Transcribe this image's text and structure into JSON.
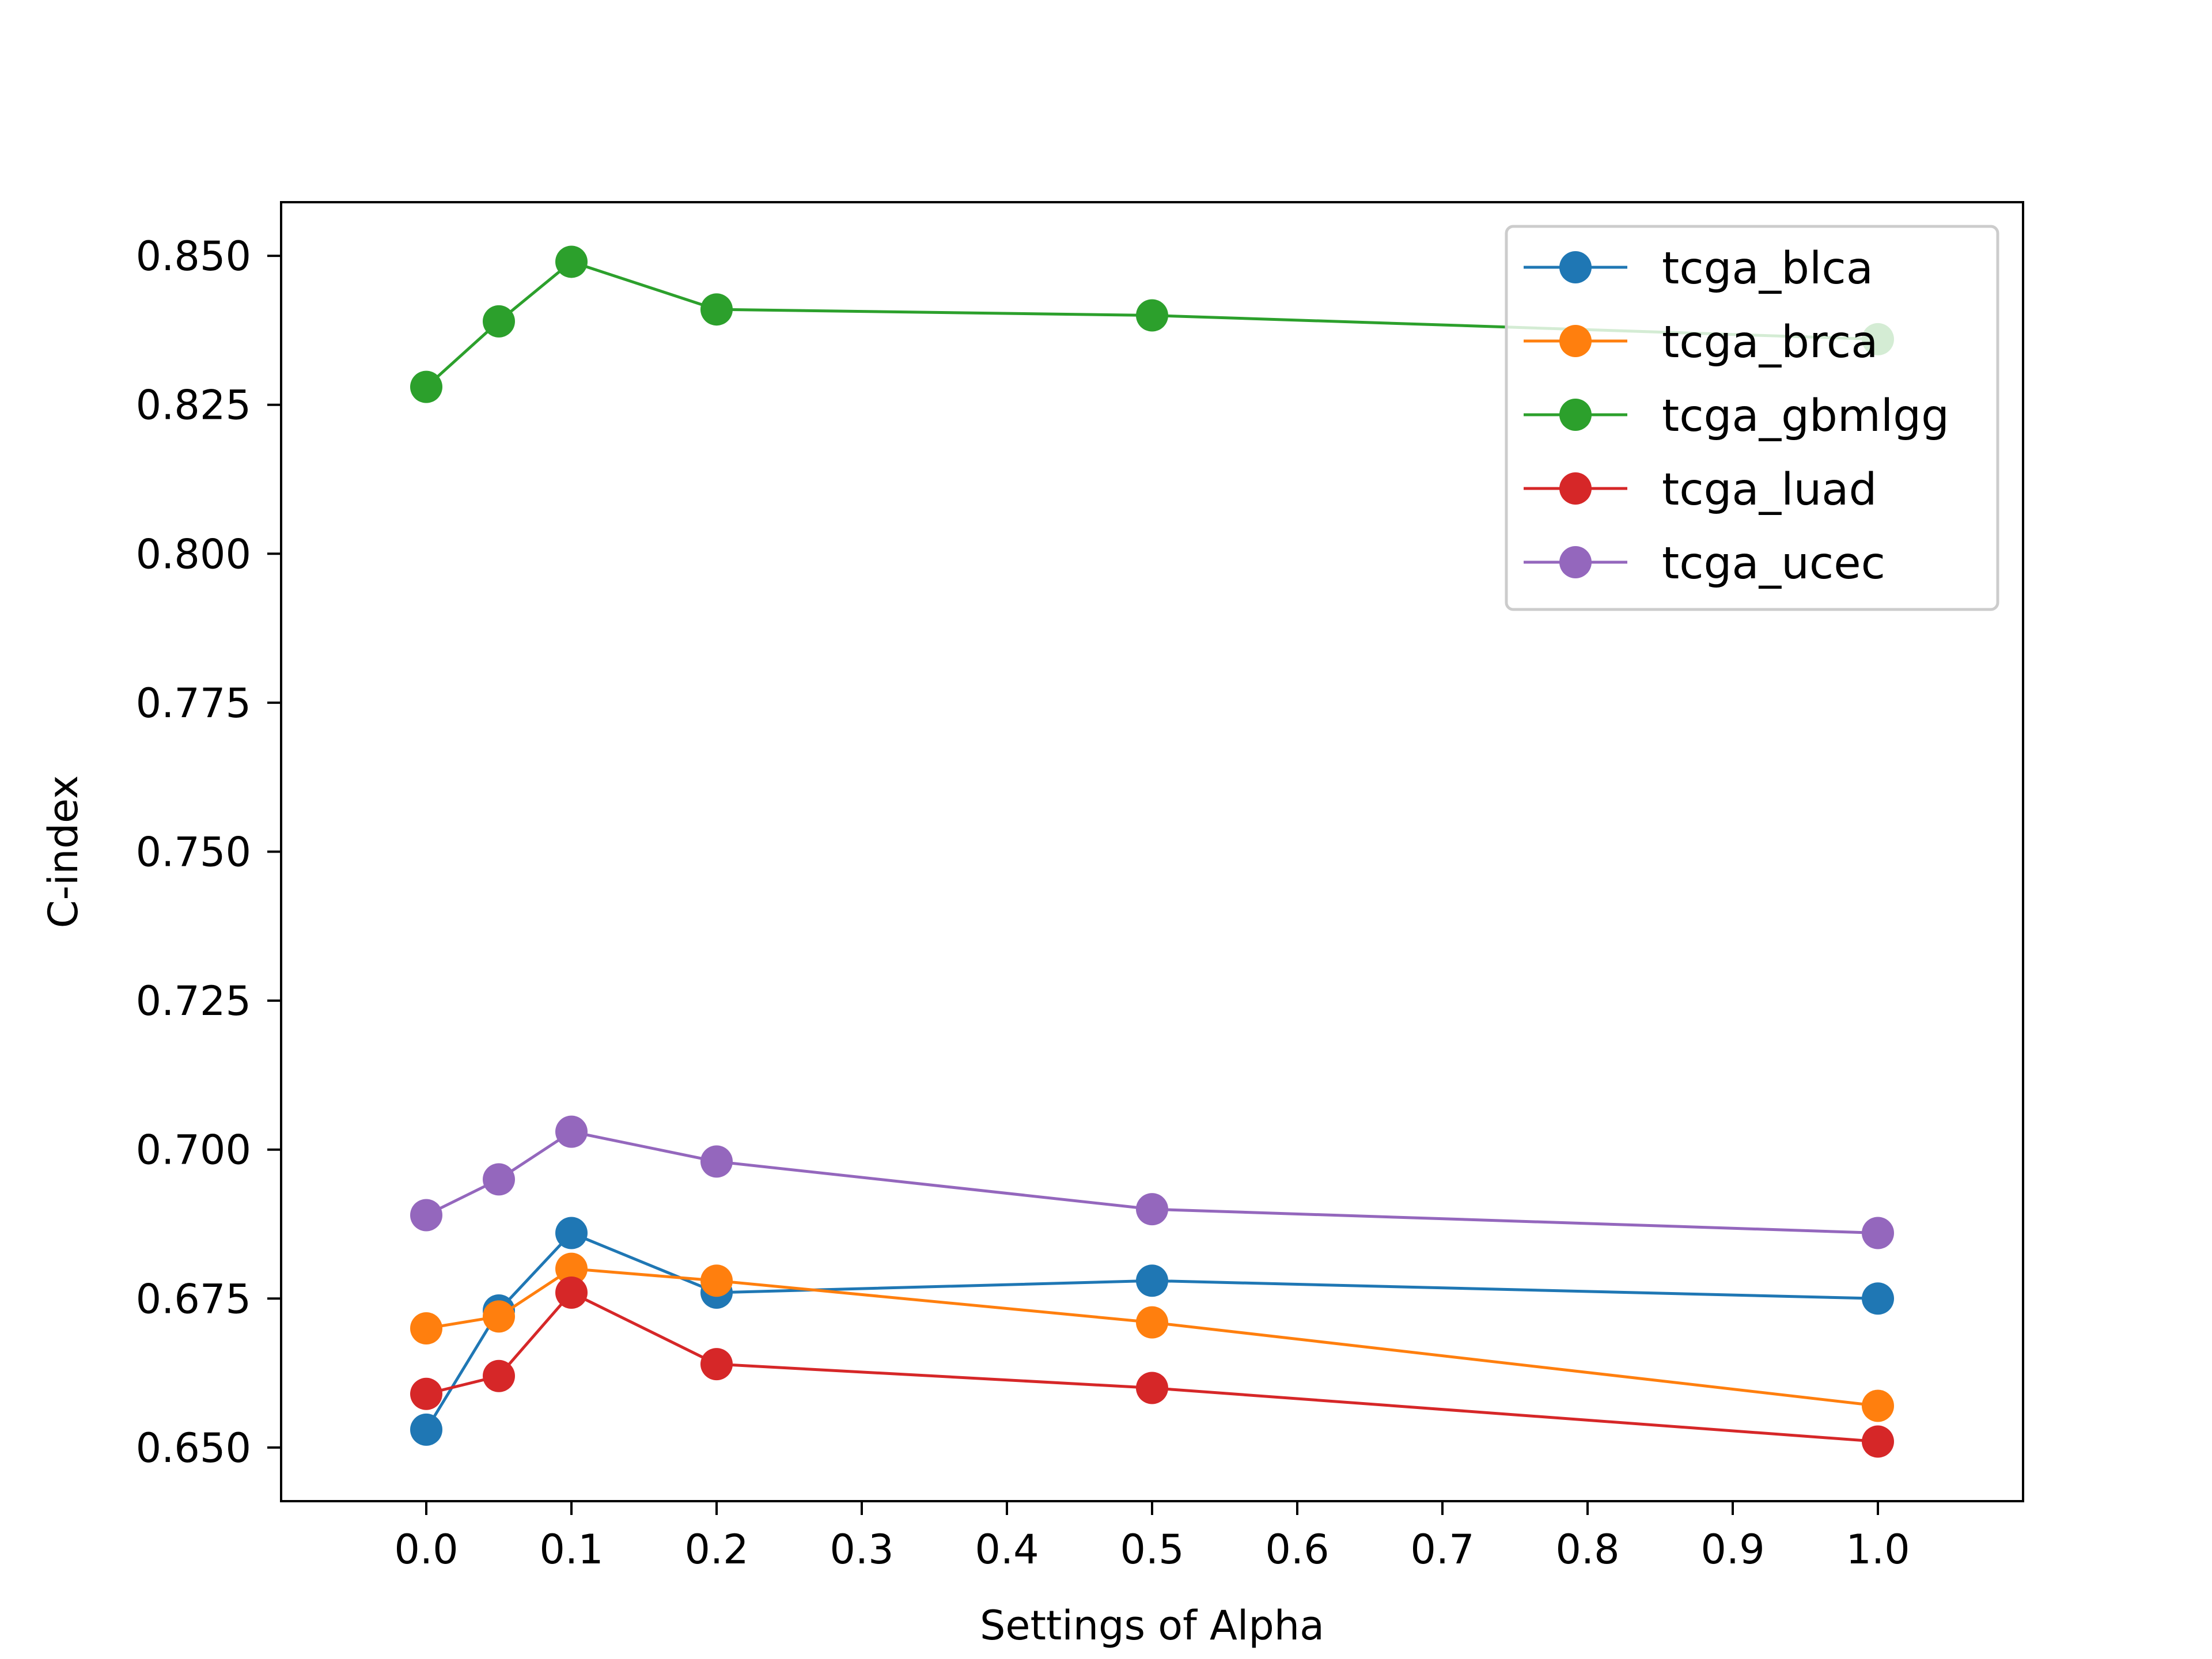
{
  "chart_data": {
    "type": "line",
    "title": "",
    "xlabel": "Settings of Alpha",
    "ylabel": "C-index",
    "xlim": [
      -0.1,
      1.1
    ],
    "ylim": [
      0.641,
      0.859
    ],
    "x_ticks": [
      "0.0",
      "0.1",
      "0.2",
      "0.3",
      "0.4",
      "0.5",
      "0.6",
      "0.7",
      "0.8",
      "0.9",
      "1.0"
    ],
    "y_ticks": [
      "0.650",
      "0.675",
      "0.700",
      "0.725",
      "0.750",
      "0.775",
      "0.800",
      "0.825",
      "0.850"
    ],
    "x": [
      0.0,
      0.05,
      0.1,
      0.2,
      0.5,
      1.0
    ],
    "legend_position": "top-right",
    "grid": false,
    "series": [
      {
        "name": "tcga_blca",
        "color": "#1f77b4",
        "values": [
          0.653,
          0.673,
          0.686,
          0.676,
          0.678,
          0.675
        ]
      },
      {
        "name": "tcga_brca",
        "color": "#ff7f0e",
        "values": [
          0.67,
          0.672,
          0.68,
          0.678,
          0.671,
          0.657
        ]
      },
      {
        "name": "tcga_gbmlgg",
        "color": "#2ca02c",
        "values": [
          0.828,
          0.839,
          0.849,
          0.841,
          0.84,
          0.836
        ]
      },
      {
        "name": "tcga_luad",
        "color": "#d62728",
        "values": [
          0.659,
          0.662,
          0.676,
          0.664,
          0.66,
          0.651
        ]
      },
      {
        "name": "tcga_ucec",
        "color": "#9467bd",
        "values": [
          0.689,
          0.695,
          0.703,
          0.698,
          0.69,
          0.686
        ]
      }
    ]
  }
}
